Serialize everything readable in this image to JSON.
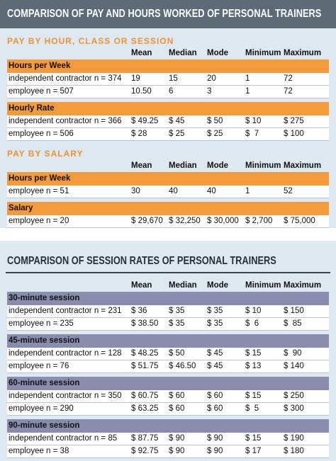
{
  "section1": {
    "title": "COMPARISON OF PAY AND HOURS WORKED OF PERSONAL TRAINERS",
    "groups": [
      {
        "heading": "PAY BY HOUR, CLASS OR SESSION",
        "columns": [
          "Mean",
          "Median",
          "Mode",
          "Minimum",
          "Maximum"
        ],
        "blocks": [
          {
            "label": "Hours per Week",
            "rows": [
              {
                "label": "independent contractor n = 374",
                "cells": [
                  "19",
                  "15",
                  "20",
                  "1",
                  "72"
                ]
              },
              {
                "label": "employee n = 507",
                "cells": [
                  "10.50",
                  "6",
                  "3",
                  "1",
                  "72"
                ]
              }
            ]
          },
          {
            "label": "Hourly Rate",
            "rows": [
              {
                "label": "independent contractor n = 366",
                "cells": [
                  "$ 49.25",
                  "$ 45",
                  "$ 50",
                  "$ 10",
                  "$ 275"
                ]
              },
              {
                "label": "employee n = 506",
                "cells": [
                  "$ 28",
                  "$ 25",
                  "$ 25",
                  "$  7",
                  "$ 100"
                ]
              }
            ]
          }
        ]
      },
      {
        "heading": "PAY BY SALARY",
        "columns": [
          "Mean",
          "Median",
          "Mode",
          "Minimum",
          "Maximum"
        ],
        "blocks": [
          {
            "label": "Hours per Week",
            "rows": [
              {
                "label": "employee n = 51",
                "cells": [
                  "30",
                  "40",
                  "40",
                  "1",
                  "52"
                ]
              }
            ]
          },
          {
            "label": "Salary",
            "rows": [
              {
                "label": "employee n = 20",
                "cells": [
                  "$ 29,670",
                  "$ 32,250",
                  "$ 30,000",
                  "$ 2,700",
                  "$ 75,000"
                ]
              }
            ]
          }
        ]
      }
    ]
  },
  "section2": {
    "title": "COMPARISON OF SESSION RATES OF PERSONAL TRAINERS",
    "groups": [
      {
        "columns": [
          "Mean",
          "Median",
          "Mode",
          "Minimum",
          "Maximum"
        ],
        "blocks": [
          {
            "label": "30-minute session",
            "rows": [
              {
                "label": "independent contractor n = 231",
                "cells": [
                  "$ 36",
                  "$ 35",
                  "$ 35",
                  "$ 10",
                  "$ 150"
                ]
              },
              {
                "label": "employee n = 235",
                "cells": [
                  "$ 38.50",
                  "$ 35",
                  "$ 35",
                  "$  6",
                  "$  85"
                ]
              }
            ]
          },
          {
            "label": "45-minute session",
            "rows": [
              {
                "label": "independent contractor n = 128",
                "cells": [
                  "$ 48.25",
                  "$ 50",
                  "$ 45",
                  "$ 15",
                  "$  90"
                ]
              },
              {
                "label": "employee n = 76",
                "cells": [
                  "$ 51.75",
                  "$ 46.50",
                  "$ 45",
                  "$ 13",
                  "$ 140"
                ]
              }
            ]
          },
          {
            "label": "60-minute session",
            "rows": [
              {
                "label": "independent contractor n = 350",
                "cells": [
                  "$ 60.75",
                  "$ 60",
                  "$ 60",
                  "$ 15",
                  "$ 250"
                ]
              },
              {
                "label": "employee n = 290",
                "cells": [
                  "$ 63.25",
                  "$ 60",
                  "$ 60",
                  "$  5",
                  "$ 300"
                ]
              }
            ]
          },
          {
            "label": "90-minute session",
            "rows": [
              {
                "label": "independent contractor n = 85",
                "cells": [
                  "$ 87.75",
                  "$ 90",
                  "$ 90",
                  "$ 15",
                  "$ 190"
                ]
              },
              {
                "label": "employee n = 38",
                "cells": [
                  "$ 92.75",
                  "$ 90",
                  "$ 90",
                  "$ 17",
                  "$ 180"
                ]
              }
            ]
          }
        ]
      }
    ]
  }
}
